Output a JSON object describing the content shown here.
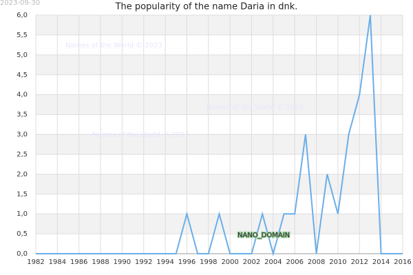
{
  "chart_data": {
    "type": "line",
    "title": "The popularity of the name Daria in dnk.",
    "date": "2023-09-30",
    "x": [
      1982,
      1983,
      1984,
      1985,
      1986,
      1987,
      1988,
      1989,
      1990,
      1991,
      1992,
      1993,
      1994,
      1995,
      1996,
      1997,
      1998,
      1999,
      2000,
      2001,
      2002,
      2003,
      2004,
      2005,
      2006,
      2007,
      2008,
      2009,
      2010,
      2011,
      2012,
      2013,
      2014,
      2015,
      2016
    ],
    "series": [
      {
        "color": "#6aaee8",
        "values": [
          0,
          0,
          0,
          0,
          0,
          0,
          0,
          0,
          0,
          0,
          0,
          0,
          0,
          0,
          1,
          0,
          0,
          1,
          0,
          0,
          0,
          1,
          0,
          1,
          1,
          3,
          0,
          2,
          1,
          3,
          4,
          6,
          0,
          0,
          0
        ]
      }
    ],
    "xlim": [
      1982,
      2016
    ],
    "xticks": [
      1982,
      1984,
      1986,
      1988,
      1990,
      1992,
      1994,
      1996,
      1998,
      2000,
      2002,
      2004,
      2006,
      2008,
      2010,
      2012,
      2014,
      2016
    ],
    "ylim": [
      0,
      6
    ],
    "yticks": [
      {
        "value": 0,
        "label": "0,0"
      },
      {
        "value": 0.5,
        "label": "0,5"
      },
      {
        "value": 1,
        "label": "1,0"
      },
      {
        "value": 1.5,
        "label": "1,5"
      },
      {
        "value": 2,
        "label": "2,0"
      },
      {
        "value": 2.5,
        "label": "2,5"
      },
      {
        "value": 3,
        "label": "3,0"
      },
      {
        "value": 3.5,
        "label": "3,5"
      },
      {
        "value": 4,
        "label": "4,0"
      },
      {
        "value": 4.5,
        "label": "4,5"
      },
      {
        "value": 5,
        "label": "5,0"
      },
      {
        "value": 5.5,
        "label": "5,5"
      },
      {
        "value": 6,
        "label": "6,0"
      }
    ],
    "grid": true,
    "annotations": [
      "Names of the World © 2023",
      "Names of the World © 2023",
      "Names of the World © 2023",
      "NANO_DOMAIN"
    ]
  }
}
